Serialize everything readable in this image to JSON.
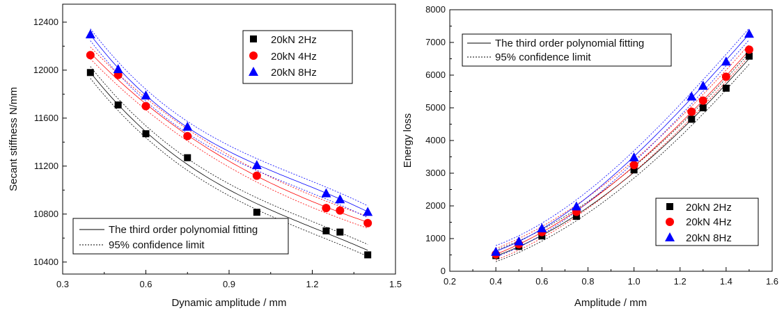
{
  "chart_data": [
    {
      "type": "scatter",
      "xlabel": "Dynamic amplitude / mm",
      "ylabel": "Secant stiffness N/mm",
      "xlim": [
        0.3,
        1.5
      ],
      "ylim": [
        10300,
        12550
      ],
      "xticks": [
        0.3,
        0.6,
        0.9,
        1.2,
        1.5
      ],
      "xtick_labels": [
        "0.3",
        "0.6",
        "0.9",
        "1.2",
        "1.5"
      ],
      "yticks": [
        10400,
        10800,
        11200,
        11600,
        12000,
        12400
      ],
      "ytick_labels": [
        "10400",
        "10800",
        "11200",
        "11600",
        "12000",
        "12400"
      ],
      "grid": false,
      "series": [
        {
          "name": "20kN 2Hz",
          "marker": "square",
          "color": "#000000",
          "x": [
            0.4,
            0.5,
            0.6,
            0.75,
            1.0,
            1.25,
            1.3,
            1.4
          ],
          "y": [
            11980,
            11710,
            11470,
            11270,
            10815,
            10660,
            10650,
            10460
          ]
        },
        {
          "name": "20kN 4Hz",
          "marker": "circle",
          "color": "#ff0000",
          "x": [
            0.4,
            0.5,
            0.6,
            0.75,
            1.0,
            1.25,
            1.3,
            1.4
          ],
          "y": [
            12125,
            11960,
            11700,
            11450,
            11120,
            10850,
            10830,
            10725
          ]
        },
        {
          "name": "20kN 8Hz",
          "marker": "triangle",
          "color": "#0000ff",
          "x": [
            0.4,
            0.5,
            0.6,
            0.75,
            1.0,
            1.25,
            1.3,
            1.4
          ],
          "y": [
            12300,
            12010,
            11790,
            11530,
            11210,
            10975,
            10925,
            10820
          ]
        }
      ],
      "legends": [
        {
          "position": "top-right",
          "entries": [
            "20kN 2Hz",
            "20kN 4Hz",
            "20kN 8Hz"
          ]
        },
        {
          "position": "bottom-left",
          "entries": [
            "The third order polynomial fitting",
            "95% confidence limit"
          ]
        }
      ]
    },
    {
      "type": "scatter",
      "xlabel": "Amplitude / mm",
      "ylabel": "Energy loss",
      "xlim": [
        0.2,
        1.6
      ],
      "ylim": [
        0,
        8000
      ],
      "xticks": [
        0.2,
        0.4,
        0.6,
        0.8,
        1.0,
        1.2,
        1.4,
        1.6
      ],
      "xtick_labels": [
        "0.2",
        "0.4",
        "0.6",
        "0.8",
        "1.0",
        "1.2",
        "1.4",
        "1.6"
      ],
      "yticks": [
        0,
        1000,
        2000,
        3000,
        4000,
        5000,
        6000,
        7000,
        8000
      ],
      "ytick_labels": [
        "0",
        "1000",
        "2000",
        "3000",
        "4000",
        "5000",
        "6000",
        "7000",
        "8000"
      ],
      "grid": false,
      "series": [
        {
          "name": "20kN 2Hz",
          "marker": "square",
          "color": "#000000",
          "x": [
            0.4,
            0.5,
            0.6,
            0.75,
            1.0,
            1.25,
            1.3,
            1.4,
            1.5
          ],
          "y": [
            480,
            760,
            1080,
            1680,
            3100,
            4650,
            5000,
            5600,
            6580
          ]
        },
        {
          "name": "20kN 4Hz",
          "marker": "circle",
          "color": "#ff0000",
          "x": [
            0.4,
            0.5,
            0.6,
            0.75,
            1.0,
            1.25,
            1.3,
            1.4,
            1.5
          ],
          "y": [
            520,
            830,
            1200,
            1820,
            3250,
            4880,
            5220,
            5950,
            6780
          ]
        },
        {
          "name": "20kN 8Hz",
          "marker": "triangle",
          "color": "#0000ff",
          "x": [
            0.4,
            0.5,
            0.6,
            0.75,
            1.0,
            1.25,
            1.3,
            1.4,
            1.5
          ],
          "y": [
            600,
            920,
            1320,
            1990,
            3490,
            5350,
            5680,
            6420,
            7270
          ]
        }
      ],
      "legends": [
        {
          "position": "top-left",
          "entries": [
            "The third order polynomial fitting",
            "95% confidence limit"
          ]
        },
        {
          "position": "bottom-right",
          "entries": [
            "20kN 2Hz",
            "20kN 4Hz",
            "20kN 8Hz"
          ]
        }
      ]
    }
  ]
}
